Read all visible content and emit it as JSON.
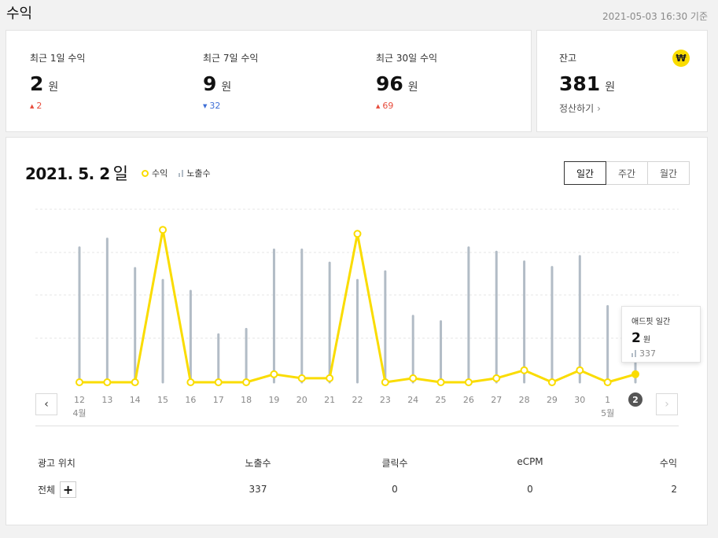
{
  "page": {
    "title": "수익",
    "timestamp": "2021-05-03 16:30 기준"
  },
  "summary": [
    {
      "label": "최근 1일 수익",
      "value": "2",
      "unit": "원",
      "change": "2",
      "direction": "up"
    },
    {
      "label": "최근 7일 수익",
      "value": "9",
      "unit": "원",
      "change": "32",
      "direction": "down"
    },
    {
      "label": "최근 30일 수익",
      "value": "96",
      "unit": "원",
      "change": "69",
      "direction": "up"
    }
  ],
  "balance": {
    "label": "잔고",
    "value": "381",
    "unit": "원",
    "settle_label": "정산하기",
    "icon": "won-icon",
    "icon_glyph": "₩"
  },
  "chart": {
    "date": "2021. 5. 2",
    "day": "일",
    "legend": {
      "revenue": "수익",
      "impressions": "노출수"
    },
    "tabs": [
      "일간",
      "주간",
      "월간"
    ],
    "active_tab": "일간",
    "colors": {
      "revenue": "#fadc00",
      "impressions": "#b2bcc6",
      "up": "#e74c3c",
      "down": "#3d6ed6"
    },
    "tooltip": {
      "title": "애드핏 일간",
      "value": "2",
      "unit": "원",
      "impressions": "337"
    }
  },
  "chart_data": {
    "type": "line",
    "categories": [
      "12",
      "13",
      "14",
      "15",
      "16",
      "17",
      "18",
      "19",
      "20",
      "21",
      "22",
      "23",
      "24",
      "25",
      "26",
      "27",
      "28",
      "29",
      "30",
      "1",
      "2"
    ],
    "month_labels": [
      {
        "index": 0,
        "label": "4월"
      },
      {
        "index": 19,
        "label": "5월"
      }
    ],
    "selected_index": 20,
    "series": [
      {
        "name": "수익",
        "type": "line",
        "values": [
          0,
          0,
          0,
          38,
          0,
          0,
          0,
          2,
          1,
          1,
          37,
          0,
          1,
          0,
          0,
          1,
          3,
          0,
          3,
          0,
          2
        ]
      },
      {
        "name": "노출수",
        "type": "bar",
        "values": [
          620,
          660,
          525,
          470,
          420,
          220,
          245,
          610,
          610,
          550,
          470,
          510,
          305,
          280,
          620,
          600,
          555,
          530,
          580,
          350,
          337
        ]
      }
    ],
    "ylim_revenue": [
      0,
      40
    ],
    "ylim_impressions": [
      0,
      800
    ],
    "grid": true
  },
  "table": {
    "headers": [
      "광고 위치",
      "노출수",
      "클릭수",
      "eCPM",
      "수익"
    ],
    "rows": [
      {
        "label": "전체",
        "impressions": "337",
        "clicks": "0",
        "ecpm": "0",
        "revenue": "2"
      }
    ]
  }
}
